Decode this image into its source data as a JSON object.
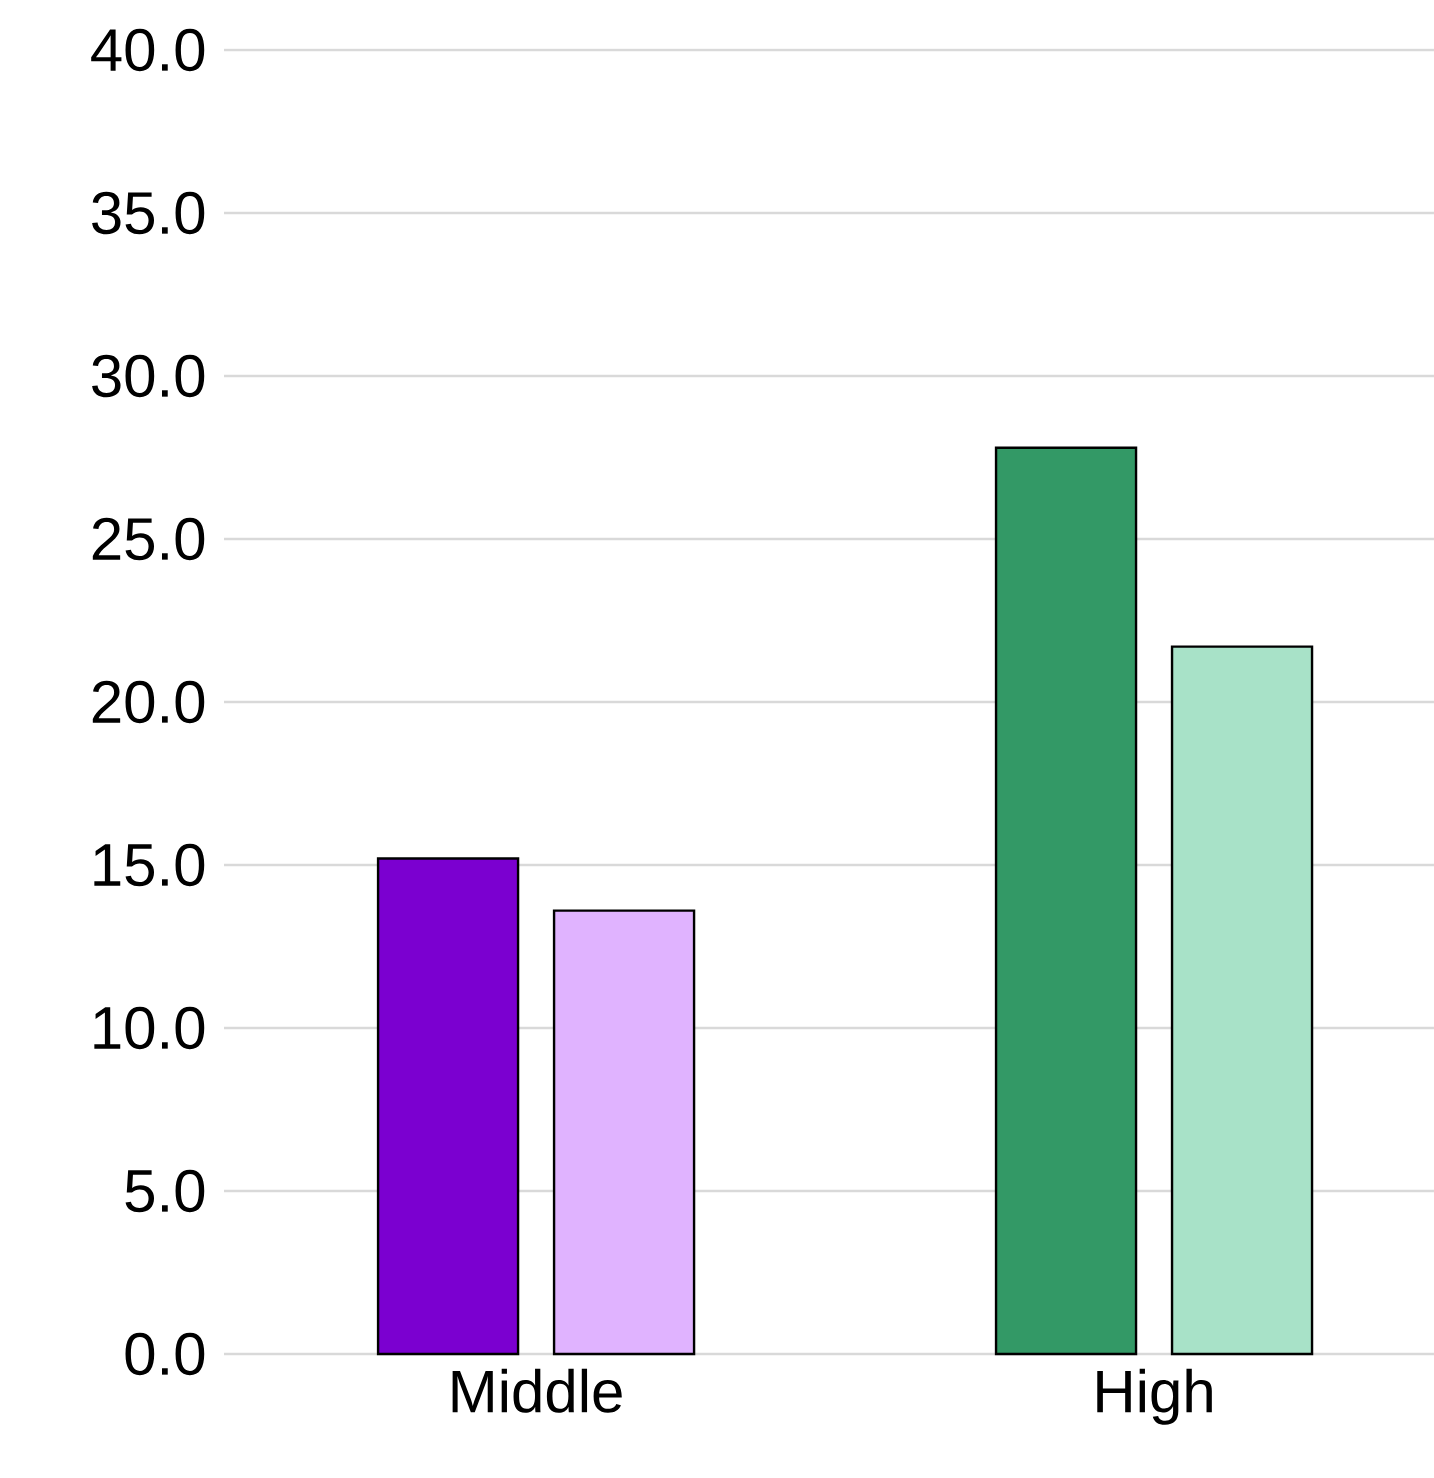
{
  "chart_data": {
    "type": "bar",
    "categories": [
      "Middle",
      "High"
    ],
    "series": [
      {
        "values": [
          15.2,
          27.8
        ],
        "colors": [
          "#7b00d0",
          "#339966"
        ]
      },
      {
        "values": [
          13.6,
          21.7
        ],
        "colors": [
          "#e0b3ff",
          "#a8e2c8"
        ]
      }
    ],
    "ylim": [
      0,
      40
    ],
    "yticks": [
      {
        "value": 0,
        "label": "0.0"
      },
      {
        "value": 5,
        "label": "5.0"
      },
      {
        "value": 10,
        "label": "10.0"
      },
      {
        "value": 15,
        "label": "15.0"
      },
      {
        "value": 20,
        "label": "20.0"
      },
      {
        "value": 25,
        "label": "25.0"
      },
      {
        "value": 30,
        "label": "30.0"
      },
      {
        "value": 35,
        "label": "35.0"
      },
      {
        "value": 40,
        "label": "40.0"
      }
    ],
    "grid": "y"
  }
}
